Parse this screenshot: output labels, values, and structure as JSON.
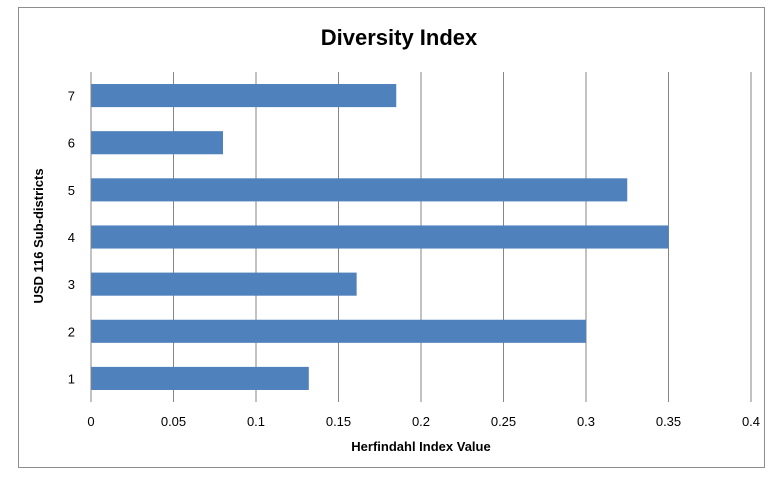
{
  "chart_data": {
    "type": "bar",
    "orientation": "horizontal",
    "title": "Diversity Index",
    "xlabel": "Herfindahl Index Value",
    "ylabel": "USD 116 Sub-districts",
    "categories": [
      "1",
      "2",
      "3",
      "4",
      "5",
      "6",
      "7"
    ],
    "values": [
      0.132,
      0.3,
      0.161,
      0.35,
      0.325,
      0.08,
      0.185
    ],
    "xlim": [
      0,
      0.4
    ],
    "xticks": [
      "0",
      "0.05",
      "0.1",
      "0.15",
      "0.2",
      "0.25",
      "0.3",
      "0.35",
      "0.4"
    ],
    "grid": "vertical",
    "legend": "none",
    "bar_color": "#4f81bd",
    "grid_color": "#868686"
  }
}
